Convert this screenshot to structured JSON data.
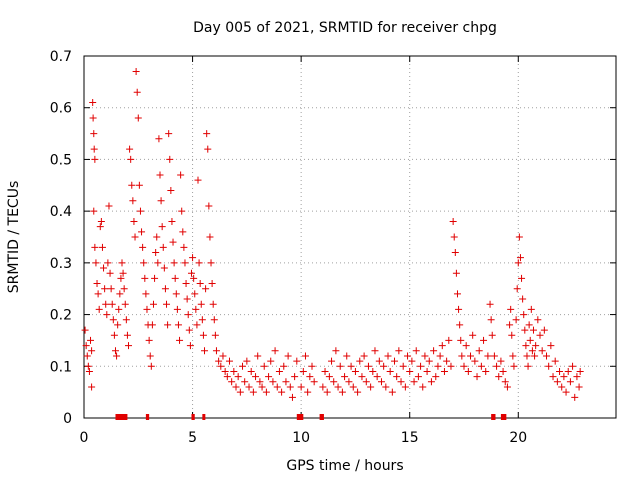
{
  "chart_data": {
    "type": "scatter",
    "title": "Day 005 of 2021, SRMTID for receiver chpg",
    "xlabel": "GPS time / hours",
    "ylabel": "SRMTID / TECUs",
    "xlim": [
      0,
      24.5
    ],
    "ylim": [
      0,
      0.7
    ],
    "xticks": [
      0,
      5,
      10,
      15,
      20
    ],
    "yticks": [
      0,
      0.1,
      0.2,
      0.3,
      0.4,
      0.5,
      0.6,
      0.7
    ],
    "xtick_labels": [
      "0",
      "5",
      "10",
      "15",
      "20"
    ],
    "ytick_labels": [
      "0",
      "0.1",
      "0.2",
      "0.3",
      "0.4",
      "0.5",
      "0.6",
      "0.7"
    ],
    "grid": true,
    "marker": "+",
    "color": "#e00000",
    "series": [
      {
        "name": "SRMTID",
        "points": [
          [
            0.05,
            0.17
          ],
          [
            0.1,
            0.14
          ],
          [
            0.15,
            0.12
          ],
          [
            0.2,
            0.1
          ],
          [
            0.25,
            0.09
          ],
          [
            0.3,
            0.15
          ],
          [
            0.35,
            0.13
          ],
          [
            0.35,
            0.06
          ],
          [
            0.4,
            0.61
          ],
          [
            0.42,
            0.58
          ],
          [
            0.45,
            0.55
          ],
          [
            0.47,
            0.52
          ],
          [
            0.5,
            0.5
          ],
          [
            0.45,
            0.4
          ],
          [
            0.5,
            0.33
          ],
          [
            0.55,
            0.3
          ],
          [
            0.6,
            0.26
          ],
          [
            0.65,
            0.24
          ],
          [
            0.7,
            0.21
          ],
          [
            0.75,
            0.37
          ],
          [
            0.8,
            0.38
          ],
          [
            0.85,
            0.33
          ],
          [
            0.9,
            0.29
          ],
          [
            0.95,
            0.25
          ],
          [
            1.0,
            0.22
          ],
          [
            1.05,
            0.2
          ],
          [
            1.1,
            0.3
          ],
          [
            1.15,
            0.41
          ],
          [
            1.2,
            0.28
          ],
          [
            1.25,
            0.25
          ],
          [
            1.3,
            0.22
          ],
          [
            1.35,
            0.19
          ],
          [
            1.4,
            0.16
          ],
          [
            1.45,
            0.13
          ],
          [
            1.5,
            0.12
          ],
          [
            1.55,
            0.18
          ],
          [
            1.6,
            0.21
          ],
          [
            1.65,
            0.24
          ],
          [
            1.7,
            0.27
          ],
          [
            1.75,
            0.3
          ],
          [
            1.8,
            0.28
          ],
          [
            1.85,
            0.25
          ],
          [
            1.9,
            0.22
          ],
          [
            1.95,
            0.19
          ],
          [
            2.0,
            0.16
          ],
          [
            2.05,
            0.14
          ],
          [
            2.1,
            0.52
          ],
          [
            2.15,
            0.5
          ],
          [
            2.2,
            0.45
          ],
          [
            2.25,
            0.42
          ],
          [
            2.3,
            0.38
          ],
          [
            2.35,
            0.35
          ],
          [
            2.4,
            0.67
          ],
          [
            2.45,
            0.63
          ],
          [
            2.5,
            0.58
          ],
          [
            2.55,
            0.45
          ],
          [
            2.6,
            0.4
          ],
          [
            2.65,
            0.36
          ],
          [
            2.7,
            0.33
          ],
          [
            2.75,
            0.3
          ],
          [
            2.8,
            0.27
          ],
          [
            2.85,
            0.24
          ],
          [
            2.9,
            0.21
          ],
          [
            2.95,
            0.18
          ],
          [
            3.0,
            0.15
          ],
          [
            3.05,
            0.12
          ],
          [
            3.1,
            0.1
          ],
          [
            3.15,
            0.18
          ],
          [
            3.2,
            0.22
          ],
          [
            3.25,
            0.27
          ],
          [
            3.3,
            0.32
          ],
          [
            3.35,
            0.35
          ],
          [
            3.4,
            0.3
          ],
          [
            3.45,
            0.54
          ],
          [
            3.5,
            0.47
          ],
          [
            3.55,
            0.42
          ],
          [
            3.6,
            0.37
          ],
          [
            3.65,
            0.33
          ],
          [
            3.7,
            0.29
          ],
          [
            3.75,
            0.25
          ],
          [
            3.8,
            0.22
          ],
          [
            3.85,
            0.18
          ],
          [
            3.9,
            0.55
          ],
          [
            3.95,
            0.5
          ],
          [
            4.0,
            0.44
          ],
          [
            4.05,
            0.38
          ],
          [
            4.1,
            0.34
          ],
          [
            4.15,
            0.3
          ],
          [
            4.2,
            0.27
          ],
          [
            4.25,
            0.24
          ],
          [
            4.3,
            0.21
          ],
          [
            4.35,
            0.18
          ],
          [
            4.4,
            0.15
          ],
          [
            4.45,
            0.47
          ],
          [
            4.5,
            0.4
          ],
          [
            4.55,
            0.36
          ],
          [
            4.6,
            0.33
          ],
          [
            4.65,
            0.3
          ],
          [
            4.7,
            0.26
          ],
          [
            4.75,
            0.23
          ],
          [
            4.8,
            0.2
          ],
          [
            4.85,
            0.17
          ],
          [
            4.9,
            0.14
          ],
          [
            4.95,
            0.28
          ],
          [
            5.0,
            0.31
          ],
          [
            5.05,
            0.27
          ],
          [
            5.1,
            0.24
          ],
          [
            5.15,
            0.21
          ],
          [
            5.2,
            0.18
          ],
          [
            5.25,
            0.46
          ],
          [
            5.3,
            0.3
          ],
          [
            5.35,
            0.26
          ],
          [
            5.4,
            0.22
          ],
          [
            5.45,
            0.19
          ],
          [
            5.5,
            0.16
          ],
          [
            5.55,
            0.13
          ],
          [
            5.6,
            0.25
          ],
          [
            5.65,
            0.55
          ],
          [
            5.7,
            0.52
          ],
          [
            5.75,
            0.41
          ],
          [
            5.8,
            0.35
          ],
          [
            5.85,
            0.3
          ],
          [
            5.9,
            0.26
          ],
          [
            5.95,
            0.22
          ],
          [
            6.0,
            0.19
          ],
          [
            6.05,
            0.16
          ],
          [
            6.1,
            0.13
          ],
          [
            6.2,
            0.11
          ],
          [
            6.3,
            0.1
          ],
          [
            6.4,
            0.12
          ],
          [
            6.5,
            0.09
          ],
          [
            6.6,
            0.08
          ],
          [
            6.7,
            0.11
          ],
          [
            6.8,
            0.07
          ],
          [
            6.9,
            0.09
          ],
          [
            7.0,
            0.06
          ],
          [
            7.1,
            0.08
          ],
          [
            7.2,
            0.05
          ],
          [
            7.3,
            0.1
          ],
          [
            7.4,
            0.07
          ],
          [
            7.5,
            0.11
          ],
          [
            7.6,
            0.06
          ],
          [
            7.7,
            0.09
          ],
          [
            7.8,
            0.05
          ],
          [
            7.9,
            0.08
          ],
          [
            8.0,
            0.12
          ],
          [
            8.1,
            0.07
          ],
          [
            8.2,
            0.06
          ],
          [
            8.3,
            0.1
          ],
          [
            8.4,
            0.05
          ],
          [
            8.5,
            0.08
          ],
          [
            8.6,
            0.11
          ],
          [
            8.7,
            0.07
          ],
          [
            8.8,
            0.13
          ],
          [
            8.9,
            0.06
          ],
          [
            9.0,
            0.09
          ],
          [
            9.1,
            0.05
          ],
          [
            9.2,
            0.1
          ],
          [
            9.3,
            0.07
          ],
          [
            9.4,
            0.12
          ],
          [
            9.5,
            0.06
          ],
          [
            9.6,
            0.04
          ],
          [
            9.7,
            0.08
          ],
          [
            9.8,
            0.11
          ],
          [
            10.0,
            0.06
          ],
          [
            10.1,
            0.09
          ],
          [
            10.2,
            0.12
          ],
          [
            10.3,
            0.05
          ],
          [
            10.4,
            0.08
          ],
          [
            10.5,
            0.1
          ],
          [
            10.6,
            0.07
          ],
          [
            11.0,
            0.06
          ],
          [
            11.1,
            0.09
          ],
          [
            11.2,
            0.05
          ],
          [
            11.3,
            0.08
          ],
          [
            11.4,
            0.11
          ],
          [
            11.5,
            0.07
          ],
          [
            11.6,
            0.13
          ],
          [
            11.7,
            0.06
          ],
          [
            11.8,
            0.1
          ],
          [
            11.9,
            0.05
          ],
          [
            12.0,
            0.08
          ],
          [
            12.1,
            0.12
          ],
          [
            12.2,
            0.07
          ],
          [
            12.3,
            0.1
          ],
          [
            12.4,
            0.06
          ],
          [
            12.5,
            0.09
          ],
          [
            12.6,
            0.05
          ],
          [
            12.7,
            0.11
          ],
          [
            12.8,
            0.08
          ],
          [
            12.9,
            0.12
          ],
          [
            13.0,
            0.07
          ],
          [
            13.1,
            0.1
          ],
          [
            13.2,
            0.06
          ],
          [
            13.3,
            0.09
          ],
          [
            13.4,
            0.13
          ],
          [
            13.5,
            0.08
          ],
          [
            13.6,
            0.11
          ],
          [
            13.7,
            0.07
          ],
          [
            13.8,
            0.1
          ],
          [
            13.9,
            0.06
          ],
          [
            14.0,
            0.12
          ],
          [
            14.1,
            0.09
          ],
          [
            14.2,
            0.05
          ],
          [
            14.3,
            0.11
          ],
          [
            14.4,
            0.08
          ],
          [
            14.5,
            0.13
          ],
          [
            14.6,
            0.07
          ],
          [
            14.7,
            0.1
          ],
          [
            14.8,
            0.06
          ],
          [
            14.9,
            0.12
          ],
          [
            15.0,
            0.09
          ],
          [
            15.1,
            0.11
          ],
          [
            15.2,
            0.07
          ],
          [
            15.3,
            0.13
          ],
          [
            15.4,
            0.08
          ],
          [
            15.5,
            0.1
          ],
          [
            15.6,
            0.06
          ],
          [
            15.7,
            0.12
          ],
          [
            15.8,
            0.09
          ],
          [
            15.9,
            0.11
          ],
          [
            16.0,
            0.07
          ],
          [
            16.1,
            0.13
          ],
          [
            16.2,
            0.08
          ],
          [
            16.3,
            0.1
          ],
          [
            16.4,
            0.12
          ],
          [
            16.5,
            0.14
          ],
          [
            16.6,
            0.09
          ],
          [
            16.7,
            0.11
          ],
          [
            16.8,
            0.15
          ],
          [
            16.9,
            0.1
          ],
          [
            17.0,
            0.38
          ],
          [
            17.05,
            0.35
          ],
          [
            17.1,
            0.32
          ],
          [
            17.15,
            0.28
          ],
          [
            17.2,
            0.24
          ],
          [
            17.25,
            0.21
          ],
          [
            17.3,
            0.18
          ],
          [
            17.35,
            0.15
          ],
          [
            17.4,
            0.12
          ],
          [
            17.5,
            0.1
          ],
          [
            17.6,
            0.14
          ],
          [
            17.7,
            0.09
          ],
          [
            17.8,
            0.12
          ],
          [
            17.9,
            0.16
          ],
          [
            18.0,
            0.11
          ],
          [
            18.1,
            0.08
          ],
          [
            18.2,
            0.13
          ],
          [
            18.3,
            0.1
          ],
          [
            18.4,
            0.15
          ],
          [
            18.5,
            0.09
          ],
          [
            18.6,
            0.12
          ],
          [
            18.7,
            0.22
          ],
          [
            18.75,
            0.19
          ],
          [
            18.8,
            0.16
          ],
          [
            18.9,
            0.12
          ],
          [
            19.0,
            0.1
          ],
          [
            19.1,
            0.08
          ],
          [
            19.2,
            0.11
          ],
          [
            19.3,
            0.09
          ],
          [
            19.4,
            0.07
          ],
          [
            19.5,
            0.06
          ],
          [
            19.6,
            0.18
          ],
          [
            19.65,
            0.21
          ],
          [
            19.7,
            0.16
          ],
          [
            19.75,
            0.12
          ],
          [
            19.8,
            0.1
          ],
          [
            19.9,
            0.19
          ],
          [
            19.95,
            0.25
          ],
          [
            20.0,
            0.3
          ],
          [
            20.05,
            0.35
          ],
          [
            20.1,
            0.31
          ],
          [
            20.15,
            0.27
          ],
          [
            20.2,
            0.23
          ],
          [
            20.25,
            0.2
          ],
          [
            20.3,
            0.17
          ],
          [
            20.35,
            0.14
          ],
          [
            20.4,
            0.12
          ],
          [
            20.45,
            0.1
          ],
          [
            20.5,
            0.18
          ],
          [
            20.55,
            0.15
          ],
          [
            20.6,
            0.21
          ],
          [
            20.65,
            0.13
          ],
          [
            20.7,
            0.17
          ],
          [
            20.75,
            0.12
          ],
          [
            20.8,
            0.14
          ],
          [
            20.9,
            0.19
          ],
          [
            21.0,
            0.16
          ],
          [
            21.1,
            0.13
          ],
          [
            21.2,
            0.17
          ],
          [
            21.3,
            0.12
          ],
          [
            21.4,
            0.1
          ],
          [
            21.5,
            0.14
          ],
          [
            21.6,
            0.08
          ],
          [
            21.7,
            0.11
          ],
          [
            21.8,
            0.07
          ],
          [
            21.9,
            0.09
          ],
          [
            22.0,
            0.06
          ],
          [
            22.1,
            0.08
          ],
          [
            22.2,
            0.05
          ],
          [
            22.3,
            0.09
          ],
          [
            22.4,
            0.07
          ],
          [
            22.5,
            0.1
          ],
          [
            22.6,
            0.04
          ],
          [
            22.7,
            0.08
          ],
          [
            22.8,
            0.06
          ],
          [
            22.85,
            0.09
          ]
        ]
      }
    ],
    "gaps": [
      [
        1.45,
        2.0
      ],
      [
        2.85,
        3.0
      ],
      [
        4.95,
        5.1
      ],
      [
        5.45,
        5.55
      ],
      [
        9.8,
        10.1
      ],
      [
        10.85,
        11.05
      ],
      [
        18.75,
        18.95
      ],
      [
        19.2,
        19.45
      ]
    ]
  }
}
